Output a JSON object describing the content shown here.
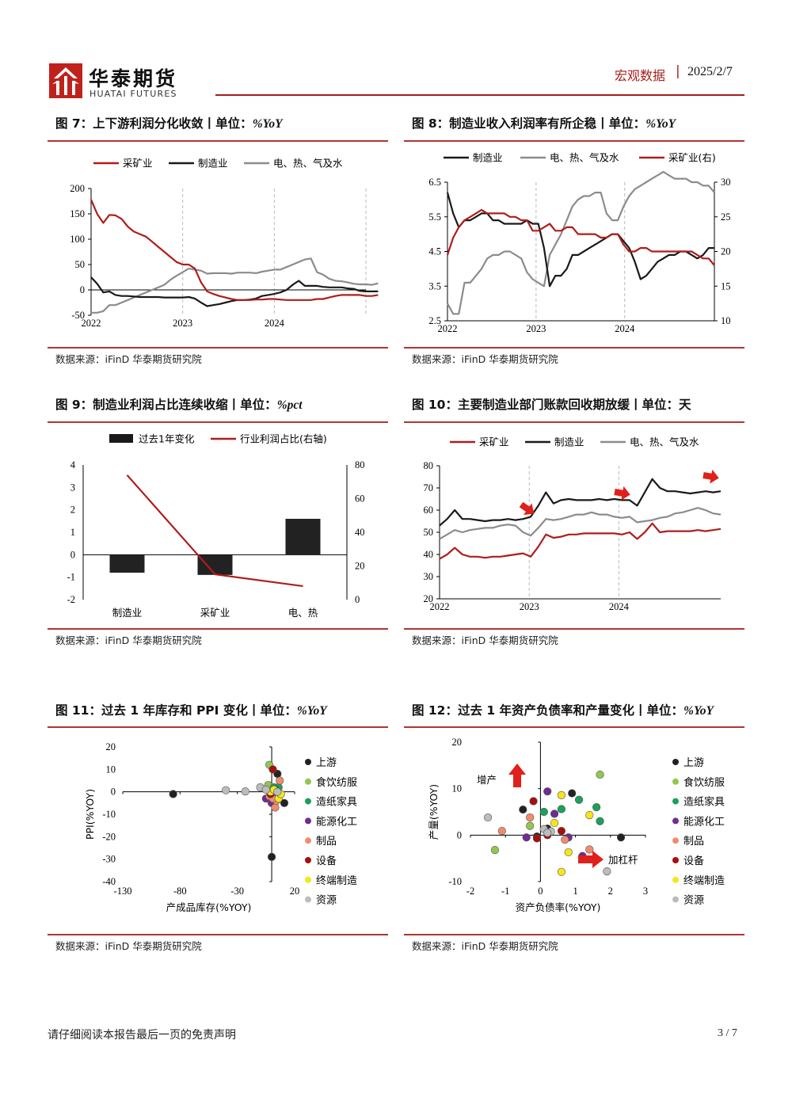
{
  "header": {
    "brand_cn": "华泰期货",
    "brand_en": "HUATAI FUTURES",
    "section": "宏观数据",
    "separator": "|",
    "date": "2025/2/7"
  },
  "source_text": "数据来源：iFinD 华泰期货研究院",
  "footer": {
    "disclaimer": "请仔细阅读本报告最后一页的免责声明",
    "page": "3 / 7"
  },
  "colors": {
    "red": "#b01c1c",
    "black": "#1a1a1a",
    "gray": "#8c8c8c",
    "accent": "#a51c1c"
  },
  "figures": {
    "f7": {
      "title": "图 7：上下游利润分化收敛丨单位：",
      "unit": "%YoY"
    },
    "f8": {
      "title": "图 8：制造业收入利润率有所企稳丨单位：",
      "unit": "%YoY"
    },
    "f9": {
      "title": "图 9：制造业利润占比连续收缩丨单位：",
      "unit": "%pct"
    },
    "f10": {
      "title": "图 10：主要制造业部门账款回收期放缓丨单位：天",
      "unit": ""
    },
    "f11": {
      "title": "图 11：过去 1 年库存和 PPI 变化丨单位：",
      "unit": "%YoY"
    },
    "f12": {
      "title": "图 12：过去 1 年资产负债率和产量变化丨单位：",
      "unit": "%YoY"
    }
  },
  "chart_data": [
    {
      "id": "f7",
      "type": "line",
      "xlabels": [
        "2022",
        "2023",
        "2024"
      ],
      "ylim": [
        -50,
        200
      ],
      "yticks": [
        -50,
        0,
        50,
        100,
        150,
        200
      ],
      "series": [
        {
          "name": "采矿业",
          "color": "red",
          "values": [
            178,
            150,
            132,
            148,
            147,
            140,
            125,
            115,
            110,
            105,
            95,
            85,
            75,
            65,
            55,
            50,
            50,
            42,
            15,
            -3,
            -8,
            -12,
            -15,
            -18,
            -20,
            -20,
            -20,
            -19,
            -19,
            -18,
            -18,
            -19,
            -20,
            -20,
            -20,
            -20,
            -20,
            -18,
            -18,
            -15,
            -12,
            -10,
            -10,
            -10,
            -10,
            -12,
            -12,
            -10
          ]
        },
        {
          "name": "制造业",
          "color": "black",
          "values": [
            25,
            12,
            -5,
            -3,
            -10,
            -12,
            -12,
            -13,
            -14,
            -14,
            -14,
            -14,
            -15,
            -15,
            -15,
            -15,
            -14,
            -17,
            -25,
            -32,
            -30,
            -28,
            -25,
            -22,
            -20,
            -20,
            -19,
            -17,
            -12,
            -10,
            -8,
            -5,
            0,
            10,
            18,
            8,
            8,
            8,
            6,
            5,
            5,
            5,
            3,
            2,
            -2,
            -3,
            -3,
            -3
          ]
        },
        {
          "name": "电、热、气及水",
          "color": "gray",
          "values": [
            -45,
            -45,
            -42,
            -30,
            -30,
            -25,
            -20,
            -15,
            -10,
            -5,
            0,
            5,
            10,
            20,
            28,
            35,
            42,
            40,
            38,
            32,
            33,
            33,
            33,
            32,
            34,
            34,
            34,
            33,
            36,
            38,
            40,
            40,
            45,
            50,
            55,
            60,
            62,
            35,
            30,
            22,
            18,
            17,
            15,
            12,
            11,
            11,
            10,
            13
          ]
        }
      ]
    },
    {
      "id": "f8",
      "type": "line",
      "xlabels": [
        "2022",
        "2023",
        "2024"
      ],
      "ylim_left": [
        2.5,
        6.5
      ],
      "yticks_left": [
        2.5,
        3.5,
        4.5,
        5.5,
        6.5
      ],
      "ylim_right": [
        10,
        30
      ],
      "yticks_right": [
        10,
        15,
        20,
        25,
        30
      ],
      "series": [
        {
          "name": "制造业",
          "color": "black",
          "axis": "left",
          "values": [
            6.2,
            5.6,
            5.2,
            5.4,
            5.4,
            5.5,
            5.6,
            5.6,
            5.4,
            5.4,
            5.3,
            5.3,
            5.3,
            5.3,
            5.4,
            5.3,
            5.3,
            4.6,
            3.5,
            3.8,
            3.8,
            4.0,
            4.4,
            4.4,
            4.5,
            4.6,
            4.7,
            4.8,
            4.9,
            5.0,
            5.0,
            4.8,
            4.6,
            4.2,
            3.7,
            3.8,
            4.0,
            4.2,
            4.3,
            4.4,
            4.4,
            4.5,
            4.5,
            4.4,
            4.3,
            4.4,
            4.6,
            4.6
          ]
        },
        {
          "name": "电、热、气及水",
          "color": "gray",
          "axis": "left",
          "values": [
            3.0,
            2.7,
            2.7,
            3.6,
            3.6,
            3.8,
            4.0,
            4.3,
            4.4,
            4.4,
            4.5,
            4.5,
            4.4,
            4.3,
            3.9,
            3.7,
            3.6,
            3.5,
            4.4,
            4.7,
            5.0,
            5.4,
            5.8,
            6.0,
            6.1,
            6.1,
            6.2,
            6.2,
            5.6,
            5.4,
            5.4,
            5.8,
            6.1,
            6.3,
            6.4,
            6.5,
            6.6,
            6.7,
            6.8,
            6.7,
            6.6,
            6.6,
            6.6,
            6.5,
            6.5,
            6.4,
            6.4,
            6.2
          ]
        },
        {
          "name": "采矿业(右)",
          "color": "red",
          "axis": "right",
          "values": [
            19.5,
            22,
            23.5,
            24.5,
            25,
            25.5,
            26,
            25.5,
            25.5,
            25.5,
            25.5,
            25,
            25,
            24.5,
            24.5,
            23,
            23,
            23.5,
            24,
            23,
            23,
            23.5,
            23.5,
            22.5,
            22.5,
            22.5,
            22.5,
            22,
            22,
            22.5,
            22.5,
            21,
            20,
            20,
            20.5,
            20.5,
            20,
            20,
            20,
            20,
            20,
            20,
            20,
            20,
            19.5,
            19,
            19,
            18
          ]
        }
      ]
    },
    {
      "id": "f9",
      "type": "bar",
      "categories": [
        "制造业",
        "采矿业",
        "电、热"
      ],
      "ylim_left": [
        -2,
        4
      ],
      "yticks_left": [
        -2,
        -1,
        0,
        1,
        2,
        3,
        4
      ],
      "ylim_right": [
        0,
        80
      ],
      "yticks_right": [
        0,
        20,
        40,
        60,
        80
      ],
      "series": [
        {
          "name": "过去1年变化",
          "color": "black",
          "type": "bar",
          "values": [
            -0.8,
            -0.9,
            1.6
          ]
        },
        {
          "name": "行业利润占比(右轴)",
          "color": "red",
          "type": "line",
          "values": [
            74,
            15,
            8
          ]
        }
      ]
    },
    {
      "id": "f10",
      "type": "line",
      "xlabels": [
        "2022",
        "2023",
        "2024"
      ],
      "ylim": [
        20,
        80
      ],
      "yticks": [
        20,
        30,
        40,
        50,
        60,
        70,
        80
      ],
      "series": [
        {
          "name": "采矿业",
          "color": "red",
          "values": [
            38,
            40,
            43,
            40,
            39,
            39,
            38.5,
            39,
            39,
            39.5,
            40,
            40.5,
            39,
            43.5,
            49,
            47.5,
            48,
            49,
            49,
            49.5,
            49.5,
            49.5,
            49.5,
            49.5,
            49,
            50,
            47,
            50,
            54,
            50,
            50.5,
            50.5,
            50.5,
            50.5,
            51,
            50.5,
            51,
            51.5
          ]
        },
        {
          "name": "制造业",
          "color": "black",
          "values": [
            53,
            56,
            60,
            56,
            56,
            55.5,
            55,
            55.5,
            55.5,
            56,
            55.5,
            56,
            57,
            62,
            68,
            63,
            64.5,
            65,
            64.5,
            64.5,
            64.5,
            65,
            64.5,
            65,
            64.5,
            64.5,
            62,
            68,
            74,
            70,
            68.5,
            68.5,
            68,
            67.5,
            68,
            68.5,
            68,
            68.5
          ]
        },
        {
          "name": "电、热、气及水",
          "color": "gray",
          "values": [
            47,
            49,
            51,
            50,
            51,
            51.5,
            52,
            52,
            53,
            53.5,
            53,
            50,
            48.5,
            52,
            56,
            55.5,
            56,
            57,
            58,
            58,
            59,
            58,
            58,
            57,
            56.5,
            57,
            54.5,
            55,
            55.5,
            56.5,
            57,
            58.5,
            59,
            60,
            61,
            60,
            58.5,
            58
          ]
        }
      ]
    },
    {
      "id": "f11",
      "type": "scatter",
      "xlabel": "产成品库存(%YOY)",
      "ylabel": "PPI(%YOY)",
      "xlim": [
        -130,
        20
      ],
      "xticks": [
        -130,
        -80,
        -30,
        20
      ],
      "ylim": [
        -40,
        20
      ],
      "yticks": [
        -40,
        -30,
        -20,
        -10,
        0,
        10,
        20
      ],
      "legend": [
        "上游",
        "食饮纺服",
        "造纸家具",
        "能源化工",
        "制品",
        "设备",
        "终端制造",
        "资源"
      ],
      "groups": [
        {
          "name": "上游",
          "color": "#222222",
          "points": [
            [
              -86,
              -1
            ],
            [
              5,
              8
            ],
            [
              5,
              0
            ],
            [
              11,
              -5
            ],
            [
              0,
              -29
            ]
          ]
        },
        {
          "name": "食饮纺服",
          "color": "#92c74f",
          "points": [
            [
              -2,
              12
            ],
            [
              4,
              -2
            ],
            [
              -3,
              3
            ]
          ]
        },
        {
          "name": "造纸家具",
          "color": "#1aa15a",
          "points": [
            [
              2,
              2
            ],
            [
              5,
              -1
            ],
            [
              6,
              2
            ]
          ]
        },
        {
          "name": "能源化工",
          "color": "#6f2c91",
          "points": [
            [
              -5,
              -3
            ],
            [
              3,
              -1
            ],
            [
              0,
              -5
            ]
          ]
        },
        {
          "name": "制品",
          "color": "#f08c6c",
          "points": [
            [
              -2,
              -2
            ],
            [
              7,
              5
            ],
            [
              3,
              -7
            ],
            [
              4,
              -4
            ],
            [
              1,
              -3
            ]
          ]
        },
        {
          "name": "设备",
          "color": "#a80e0e",
          "points": [
            [
              1,
              10
            ],
            [
              3,
              1
            ],
            [
              -1,
              -1
            ]
          ]
        },
        {
          "name": "终端制造",
          "color": "#f7e51b",
          "points": [
            [
              -1,
              0
            ],
            [
              6,
              -3
            ],
            [
              8,
              -1
            ],
            [
              2,
              1
            ]
          ]
        },
        {
          "name": "资源",
          "color": "#bcbcbc",
          "points": [
            [
              -40,
              0.7
            ],
            [
              -23,
              0.2
            ],
            [
              -10,
              2
            ],
            [
              -5,
              1
            ],
            [
              5,
              0
            ]
          ]
        }
      ]
    },
    {
      "id": "f12",
      "type": "scatter",
      "xlabel": "资产负债率(%YOY)",
      "ylabel": "产量(%YOY)",
      "xlim": [
        -2,
        3
      ],
      "xticks": [
        -2,
        -1,
        0,
        1,
        2,
        3
      ],
      "ylim": [
        -10,
        20
      ],
      "yticks": [
        -10,
        0,
        10,
        20
      ],
      "annotations": [
        "增产",
        "加杠杆"
      ],
      "legend": [
        "上游",
        "食饮纺服",
        "造纸家具",
        "能源化工",
        "制品",
        "设备",
        "终端制造",
        "资源"
      ],
      "groups": [
        {
          "name": "上游",
          "color": "#222222",
          "points": [
            [
              -0.5,
              5.5
            ],
            [
              0.9,
              9
            ],
            [
              0.2,
              1.4
            ],
            [
              2.3,
              -0.5
            ],
            [
              -0.1,
              -0.3
            ]
          ]
        },
        {
          "name": "食饮纺服",
          "color": "#92c74f",
          "points": [
            [
              1.7,
              13
            ],
            [
              -1.3,
              -3.2
            ],
            [
              -0.3,
              2
            ]
          ]
        },
        {
          "name": "造纸家具",
          "color": "#1aa15a",
          "points": [
            [
              1.1,
              7.6
            ],
            [
              0.6,
              5.6
            ],
            [
              1.6,
              6
            ],
            [
              0.1,
              5
            ],
            [
              1.7,
              3
            ]
          ]
        },
        {
          "name": "能源化工",
          "color": "#6f2c91",
          "points": [
            [
              0.2,
              9.4
            ],
            [
              0.4,
              4.6
            ],
            [
              -0.4,
              -0.5
            ],
            [
              0.8,
              -0.5
            ],
            [
              1.2,
              -4.5
            ]
          ]
        },
        {
          "name": "制品",
          "color": "#f08c6c",
          "points": [
            [
              -1.1,
              0.9
            ],
            [
              -0.3,
              3.8
            ],
            [
              0.7,
              -1
            ],
            [
              1.4,
              -3.1
            ]
          ]
        },
        {
          "name": "设备",
          "color": "#a80e0e",
          "points": [
            [
              -0.2,
              7.3
            ],
            [
              0.6,
              0.9
            ],
            [
              -0.1,
              -0.7
            ],
            [
              0.2,
              0
            ]
          ]
        },
        {
          "name": "终端制造",
          "color": "#f7e51b",
          "points": [
            [
              0.6,
              8.6
            ],
            [
              1.4,
              4.3
            ],
            [
              0.4,
              2.6
            ],
            [
              0.8,
              -3.7
            ],
            [
              0.6,
              -7.9
            ]
          ]
        },
        {
          "name": "资源",
          "color": "#bcbcbc",
          "points": [
            [
              -1.5,
              3.8
            ],
            [
              0.1,
              1.3
            ],
            [
              0.3,
              0.8
            ],
            [
              1.9,
              -7.8
            ],
            [
              0.2,
              0.5
            ]
          ]
        }
      ]
    }
  ]
}
